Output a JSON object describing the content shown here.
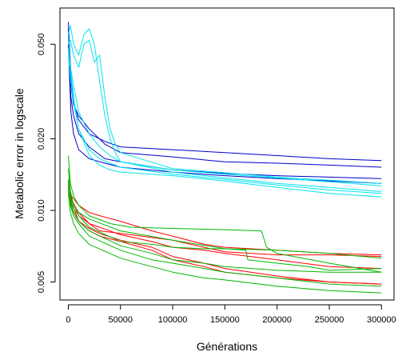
{
  "chart_data": {
    "type": "line",
    "title": "",
    "xlabel": "Générations",
    "ylabel": "Metabolic error in logscale",
    "xlim": [
      -8000,
      312000
    ],
    "ylim": [
      0.0042,
      0.071
    ],
    "y_scale": "log",
    "grid": false,
    "legend": "none",
    "x_ticks": [
      0,
      50000,
      100000,
      150000,
      200000,
      250000,
      300000
    ],
    "x_tick_labels": [
      "0",
      "50000",
      "100000",
      "150000",
      "200000",
      "250000",
      "300000"
    ],
    "y_ticks": [
      0.005,
      0.01,
      0.02,
      0.05
    ],
    "y_tick_labels": [
      "0.005",
      "0.010",
      "0.020",
      "0.050"
    ],
    "series": [
      {
        "color": "#0000cd",
        "x": [
          0,
          1000,
          2500,
          5000,
          10000,
          20000,
          35000,
          50000,
          100000,
          150000,
          200000,
          250000,
          300000
        ],
        "y": [
          0.062,
          0.05,
          0.038,
          0.028,
          0.024,
          0.021,
          0.0195,
          0.0185,
          0.018,
          0.0175,
          0.017,
          0.0165,
          0.0162
        ]
      },
      {
        "color": "#0000cd",
        "x": [
          0,
          1000,
          2500,
          5000,
          10000,
          20000,
          35000,
          50000,
          100000,
          150000,
          200000,
          250000,
          300000
        ],
        "y": [
          0.055,
          0.045,
          0.034,
          0.028,
          0.025,
          0.022,
          0.019,
          0.0175,
          0.0168,
          0.016,
          0.0158,
          0.0155,
          0.0152
        ]
      },
      {
        "color": "#0000cd",
        "x": [
          0,
          1000,
          2500,
          5000,
          10000,
          20000,
          35000,
          50000,
          100000,
          150000,
          200000,
          250000,
          300000
        ],
        "y": [
          0.058,
          0.04,
          0.03,
          0.025,
          0.021,
          0.0185,
          0.0165,
          0.016,
          0.0148,
          0.0143,
          0.014,
          0.0138,
          0.0136
        ]
      },
      {
        "color": "#0000cd",
        "x": [
          0,
          1000,
          2500,
          5000,
          10000,
          20000,
          35000,
          50000,
          100000,
          150000,
          200000,
          250000,
          300000
        ],
        "y": [
          0.05,
          0.038,
          0.026,
          0.021,
          0.018,
          0.0165,
          0.0158,
          0.0152,
          0.0145,
          0.014,
          0.0136,
          0.0133,
          0.013
        ]
      },
      {
        "color": "#00e5ee",
        "x": [
          0,
          2000,
          5000,
          10000,
          15000,
          20000,
          25000,
          30000,
          35000,
          40000,
          45000,
          50000,
          100000,
          150000,
          200000,
          250000,
          300000
        ],
        "y": [
          0.055,
          0.06,
          0.05,
          0.045,
          0.055,
          0.058,
          0.05,
          0.035,
          0.025,
          0.02,
          0.0175,
          0.016,
          0.0148,
          0.0142,
          0.0137,
          0.0132,
          0.0127
        ]
      },
      {
        "color": "#00e5ee",
        "x": [
          0,
          2000,
          5000,
          10000,
          15000,
          20000,
          25000,
          30000,
          35000,
          40000,
          45000,
          50000,
          100000,
          150000,
          200000,
          250000,
          300000
        ],
        "y": [
          0.05,
          0.052,
          0.045,
          0.04,
          0.05,
          0.052,
          0.042,
          0.045,
          0.03,
          0.022,
          0.019,
          0.0175,
          0.015,
          0.0144,
          0.0138,
          0.0134,
          0.013
        ]
      },
      {
        "color": "#00e5ee",
        "x": [
          0,
          1000,
          3000,
          6000,
          10000,
          20000,
          30000,
          40000,
          50000,
          100000,
          150000,
          200000,
          250000,
          300000
        ],
        "y": [
          0.045,
          0.042,
          0.038,
          0.032,
          0.026,
          0.021,
          0.0185,
          0.017,
          0.016,
          0.0145,
          0.0137,
          0.013,
          0.0125,
          0.012
        ]
      },
      {
        "color": "#00e5ee",
        "x": [
          0,
          1000,
          3000,
          6000,
          10000,
          20000,
          30000,
          40000,
          50000,
          100000,
          150000,
          200000,
          250000,
          300000
        ],
        "y": [
          0.048,
          0.04,
          0.033,
          0.027,
          0.022,
          0.018,
          0.0165,
          0.0158,
          0.0152,
          0.0142,
          0.0135,
          0.0128,
          0.0122,
          0.0118
        ]
      },
      {
        "color": "#00e5ee",
        "x": [
          0,
          1000,
          3000,
          6000,
          10000,
          20000,
          30000,
          40000,
          50000,
          100000,
          150000,
          200000,
          250000,
          300000
        ],
        "y": [
          0.055,
          0.046,
          0.036,
          0.028,
          0.022,
          0.017,
          0.0155,
          0.0148,
          0.0145,
          0.014,
          0.0133,
          0.0125,
          0.0118,
          0.0114
        ]
      },
      {
        "color": "#ff0000",
        "x": [
          0,
          3000,
          10000,
          20000,
          30000,
          50000,
          80000,
          100000,
          130000,
          150000,
          200000,
          250000,
          300000
        ],
        "y": [
          0.013,
          0.0115,
          0.0105,
          0.0098,
          0.0095,
          0.009,
          0.0082,
          0.0078,
          0.0072,
          0.007,
          0.0068,
          0.0066,
          0.0065
        ]
      },
      {
        "color": "#ff0000",
        "x": [
          0,
          3000,
          10000,
          20000,
          30000,
          50000,
          70000,
          100000,
          130000,
          150000,
          200000,
          250000,
          300000
        ],
        "y": [
          0.0125,
          0.011,
          0.0098,
          0.0088,
          0.0082,
          0.008,
          0.0078,
          0.0075,
          0.007,
          0.0067,
          0.0065,
          0.0065,
          0.0064
        ]
      },
      {
        "color": "#ff0000",
        "x": [
          0,
          3000,
          10000,
          20000,
          30000,
          50000,
          80000,
          100000,
          130000,
          150000,
          200000,
          250000,
          300000
        ],
        "y": [
          0.0135,
          0.0112,
          0.0095,
          0.0088,
          0.0085,
          0.0079,
          0.0074,
          0.007,
          0.0068,
          0.0066,
          0.0062,
          0.0058,
          0.0057
        ]
      },
      {
        "color": "#ff0000",
        "x": [
          0,
          3000,
          10000,
          20000,
          30000,
          50000,
          80000,
          100000,
          130000,
          150000,
          200000,
          250000,
          300000
        ],
        "y": [
          0.0128,
          0.0108,
          0.009,
          0.0082,
          0.0078,
          0.0074,
          0.0068,
          0.0062,
          0.0058,
          0.0055,
          0.0052,
          0.005,
          0.0049
        ]
      },
      {
        "color": "#ff0000",
        "x": [
          0,
          3000,
          10000,
          20000,
          30000,
          50000,
          80000,
          100000,
          130000,
          150000,
          200000,
          250000,
          300000
        ],
        "y": [
          0.0122,
          0.0102,
          0.009,
          0.0084,
          0.008,
          0.0075,
          0.007,
          0.0064,
          0.006,
          0.0057,
          0.0053,
          0.005,
          0.0049
        ]
      },
      {
        "color": "#00b800",
        "x": [
          0,
          2000,
          5000,
          10000,
          20000,
          40000,
          60000,
          100000,
          150000,
          185000,
          190000,
          200000,
          250000,
          300000
        ],
        "y": [
          0.017,
          0.013,
          0.0115,
          0.0105,
          0.0095,
          0.0088,
          0.0085,
          0.0084,
          0.0083,
          0.0082,
          0.007,
          0.0066,
          0.006,
          0.0055
        ]
      },
      {
        "color": "#00b800",
        "x": [
          0,
          2000,
          5000,
          10000,
          20000,
          50000,
          100000,
          150000,
          170000,
          172000,
          200000,
          230000,
          250000,
          300000
        ],
        "y": [
          0.015,
          0.012,
          0.0105,
          0.0098,
          0.0092,
          0.0082,
          0.0075,
          0.0069,
          0.0068,
          0.0062,
          0.006,
          0.0058,
          0.0056,
          0.0057
        ]
      },
      {
        "color": "#00b800",
        "x": [
          0,
          2000,
          5000,
          10000,
          20000,
          50000,
          80000,
          100000,
          130000,
          150000,
          200000,
          250000,
          300000
        ],
        "y": [
          0.0135,
          0.0112,
          0.0102,
          0.0095,
          0.0085,
          0.0074,
          0.0072,
          0.007,
          0.0069,
          0.0069,
          0.0068,
          0.0066,
          0.0063
        ]
      },
      {
        "color": "#00b800",
        "x": [
          0,
          2000,
          5000,
          10000,
          20000,
          50000,
          80000,
          100000,
          130000,
          150000,
          200000,
          250000,
          300000
        ],
        "y": [
          0.0125,
          0.0105,
          0.0095,
          0.0088,
          0.0078,
          0.0068,
          0.0062,
          0.006,
          0.0057,
          0.0055,
          0.0052,
          0.0049,
          0.0048
        ]
      },
      {
        "color": "#00b800",
        "x": [
          0,
          2000,
          5000,
          10000,
          20000,
          50000,
          80000,
          100000,
          130000,
          150000,
          200000,
          250000,
          300000
        ],
        "y": [
          0.0118,
          0.0098,
          0.0088,
          0.008,
          0.0072,
          0.0063,
          0.0058,
          0.0055,
          0.0052,
          0.0051,
          0.0048,
          0.0046,
          0.0045
        ]
      },
      {
        "color": "#00b800",
        "x": [
          0,
          2000,
          5000,
          10000,
          20000,
          50000,
          80000,
          100000,
          130000,
          150000,
          200000,
          250000,
          300000
        ],
        "y": [
          0.0132,
          0.011,
          0.0098,
          0.009,
          0.0082,
          0.0071,
          0.0066,
          0.0062,
          0.006,
          0.0058,
          0.0056,
          0.0055,
          0.0055
        ]
      }
    ]
  }
}
